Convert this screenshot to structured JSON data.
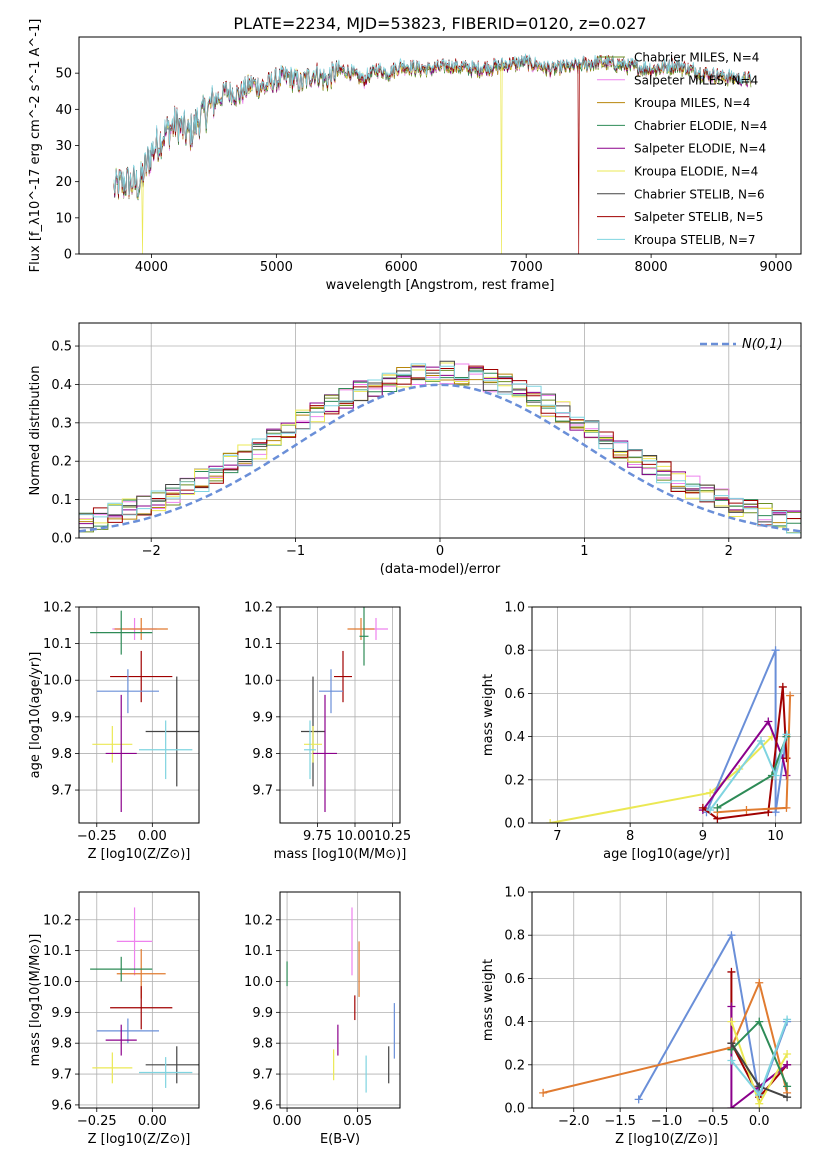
{
  "figure": {
    "title": "PLATE=2234, MJD=53823, FIBERID=0120, z=0.027"
  },
  "chart_data": [
    {
      "id": "spectrum",
      "type": "line",
      "xlabel": "wavelength [Angstrom, rest frame]",
      "ylabel": "Flux [f_λ10^-17 erg cm^-2 s^-1 A^-1]",
      "xlim": [
        3420,
        9200
      ],
      "ylim": [
        0,
        60
      ],
      "xticks": [
        4000,
        5000,
        6000,
        7000,
        8000,
        9000
      ],
      "yticks": [
        0,
        10,
        20,
        30,
        40,
        50
      ],
      "grid": false,
      "legend_position": "right",
      "series": [
        {
          "name": "Chabrier MILES, N_SSP=4",
          "color": "#6b8e23"
        },
        {
          "name": "Salpeter MILES, N_SSP=4",
          "color": "#ee82ee"
        },
        {
          "name": "Kroupa MILES, N_SSP=4",
          "color": "#b8860b"
        },
        {
          "name": "Chabrier ELODIE, N_SSP=4",
          "color": "#2e8b57"
        },
        {
          "name": "Salpeter ELODIE, N_SSP=4",
          "color": "#8b008b"
        },
        {
          "name": "Kroupa ELODIE, N_SSP=4",
          "color": "#ebe854"
        },
        {
          "name": "Chabrier STELIB, N_SSP=6",
          "color": "#444444"
        },
        {
          "name": "Salpeter STELIB, N_SSP=5",
          "color": "#a00000"
        },
        {
          "name": "Kroupa STELIB, N_SSP=7",
          "color": "#7fd4e0"
        }
      ],
      "continuum": {
        "x": [
          3700,
          3800,
          3900,
          4000,
          4100,
          4200,
          4300,
          4400,
          4500,
          4600,
          4700,
          4800,
          4900,
          5000,
          5100,
          5200,
          5300,
          5400,
          5500,
          5600,
          5700,
          5800,
          5900,
          6000,
          6200,
          6400,
          6600,
          6800,
          7000,
          7200,
          7400,
          7600,
          7800,
          8000,
          8200,
          8400,
          8600,
          8800
        ],
        "y": [
          18,
          20,
          19,
          28,
          33,
          36,
          33,
          38,
          42,
          45,
          44,
          47,
          46,
          48,
          49,
          47,
          50,
          48,
          51,
          50,
          48,
          51,
          50,
          52,
          51,
          52,
          51,
          52,
          53,
          51,
          52,
          53,
          52,
          51,
          52,
          50,
          49,
          48
        ]
      },
      "dips": [
        {
          "x": 3930,
          "y": 0,
          "series": "Kroupa ELODIE, N_SSP=4"
        },
        {
          "x": 6800,
          "y": 0,
          "series": "Kroupa ELODIE, N_SSP=4"
        },
        {
          "x": 7420,
          "y": 0,
          "series": "Salpeter STELIB, N_SSP=5"
        }
      ]
    },
    {
      "id": "residual_hist",
      "type": "bar",
      "xlabel": "(data-model)/error",
      "ylabel": "Normed distribution",
      "xlim": [
        -2.5,
        2.5
      ],
      "ylim": [
        0,
        0.56
      ],
      "xticks": [
        -2,
        -1,
        0,
        1,
        2
      ],
      "yticks": [
        0.0,
        0.1,
        0.2,
        0.3,
        0.4,
        0.5
      ],
      "grid": true,
      "legend": [
        {
          "name": "N(0,1)",
          "color": "#6a8fd8",
          "style": "dashed"
        }
      ],
      "legend_position": "top-right",
      "bin_width": 0.1,
      "gaussian": {
        "mean": 0,
        "sigma": 1
      }
    },
    {
      "id": "age_vs_Z",
      "type": "scatter",
      "xlabel": "Z [log10(Z/Z⊙)]",
      "ylabel": "age [log10(age/yr)]",
      "xlim": [
        -0.33,
        0.21
      ],
      "ylim": [
        9.61,
        10.2
      ],
      "xticks": [
        -0.25,
        0.0
      ],
      "yticks": [
        9.7,
        9.8,
        9.9,
        10.0,
        10.1,
        10.2
      ],
      "grid": true,
      "points": [
        {
          "x": -0.08,
          "y": 10.14,
          "xerr": 0.1,
          "yerr": 0.03,
          "color": "#ee82ee"
        },
        {
          "x": -0.05,
          "y": 10.14,
          "xerr": 0.12,
          "yerr": 0.03,
          "color": "#e07b30"
        },
        {
          "x": -0.14,
          "y": 10.13,
          "xerr": 0.14,
          "yerr": 0.06,
          "color": "#2e8b57"
        },
        {
          "x": -0.05,
          "y": 10.01,
          "xerr": 0.14,
          "yerr": 0.07,
          "color": "#a00000"
        },
        {
          "x": -0.11,
          "y": 9.97,
          "xerr": 0.14,
          "yerr": 0.06,
          "color": "#6a8fd8"
        },
        {
          "x": 0.11,
          "y": 9.86,
          "xerr": 0.14,
          "yerr": 0.15,
          "color": "#444444"
        },
        {
          "x": -0.18,
          "y": 9.825,
          "xerr": 0.09,
          "yerr": 0.05,
          "color": "#ebe854"
        },
        {
          "x": -0.14,
          "y": 9.8,
          "xerr": 0.07,
          "yerr": 0.16,
          "color": "#8b008b"
        },
        {
          "x": 0.06,
          "y": 9.81,
          "xerr": 0.12,
          "yerr": 0.08,
          "color": "#7fd4e0"
        }
      ]
    },
    {
      "id": "age_vs_mass",
      "type": "scatter",
      "xlabel": "mass [log10(M/M⊙)]",
      "ylabel": "",
      "xlim": [
        9.5,
        10.3
      ],
      "ylim": [
        9.61,
        10.2
      ],
      "xticks": [
        9.75,
        10.0,
        10.25
      ],
      "yticks": [
        9.7,
        9.8,
        9.9,
        10.0,
        10.1,
        10.2
      ],
      "grid": true,
      "points": [
        {
          "x": 10.14,
          "y": 10.14,
          "xerr": 0.08,
          "yerr": 0.03,
          "color": "#ee82ee"
        },
        {
          "x": 10.04,
          "y": 10.14,
          "xerr": 0.09,
          "yerr": 0.03,
          "color": "#e07b30"
        },
        {
          "x": 10.06,
          "y": 10.12,
          "xerr": 0.03,
          "yerr": 0.08,
          "color": "#2e8b57"
        },
        {
          "x": 9.92,
          "y": 10.01,
          "xerr": 0.06,
          "yerr": 0.07,
          "color": "#a00000"
        },
        {
          "x": 9.84,
          "y": 9.97,
          "xerr": 0.08,
          "yerr": 0.06,
          "color": "#6a8fd8"
        },
        {
          "x": 9.72,
          "y": 9.86,
          "xerr": 0.08,
          "yerr": 0.15,
          "color": "#444444"
        },
        {
          "x": 9.72,
          "y": 9.825,
          "xerr": 0.06,
          "yerr": 0.05,
          "color": "#ebe854"
        },
        {
          "x": 9.8,
          "y": 9.8,
          "xerr": 0.08,
          "yerr": 0.16,
          "color": "#8b008b"
        },
        {
          "x": 9.7,
          "y": 9.81,
          "xerr": 0.04,
          "yerr": 0.08,
          "color": "#7fd4e0"
        }
      ]
    },
    {
      "id": "weight_vs_age",
      "type": "line",
      "xlabel": "age [log10(age/yr)]",
      "ylabel": "mass weight",
      "xlim": [
        6.65,
        10.35
      ],
      "ylim": [
        0,
        1.0
      ],
      "xticks": [
        7,
        8,
        9,
        10
      ],
      "yticks": [
        0.0,
        0.2,
        0.4,
        0.6,
        0.8,
        1.0
      ],
      "grid": true,
      "series": [
        {
          "color": "#ebe854",
          "x": [
            6.9,
            9.1,
            9.5,
            9.95
          ],
          "y": [
            0.0,
            0.14,
            0.25,
            0.4
          ]
        },
        {
          "color": "#6a8fd8",
          "x": [
            9.05,
            10.0,
            10.0,
            10.15
          ],
          "y": [
            0.05,
            0.8,
            0.05,
            0.4
          ]
        },
        {
          "color": "#8b008b",
          "x": [
            9.0,
            9.9,
            10.1,
            10.15
          ],
          "y": [
            0.06,
            0.47,
            0.3,
            0.22
          ]
        },
        {
          "color": "#a00000",
          "x": [
            9.0,
            9.2,
            9.9,
            10.1,
            10.15
          ],
          "y": [
            0.07,
            0.02,
            0.05,
            0.63,
            0.3
          ]
        },
        {
          "color": "#e07b30",
          "x": [
            9.2,
            9.6,
            10.15,
            10.2
          ],
          "y": [
            0.05,
            0.06,
            0.07,
            0.59
          ]
        },
        {
          "color": "#2e8b57",
          "x": [
            9.2,
            9.95,
            10.15
          ],
          "y": [
            0.07,
            0.22,
            0.4
          ]
        },
        {
          "color": "#7fd4e0",
          "x": [
            9.1,
            9.8,
            10.0,
            10.15
          ],
          "y": [
            0.06,
            0.38,
            0.22,
            0.41
          ]
        }
      ]
    },
    {
      "id": "mass_vs_Z",
      "type": "scatter",
      "xlabel": "Z [log10(Z/Z⊙)]",
      "ylabel": "mass [log10(M/M⊙)]",
      "xlim": [
        -0.33,
        0.21
      ],
      "ylim": [
        9.59,
        10.29
      ],
      "xticks": [
        -0.25,
        0.0
      ],
      "yticks": [
        9.6,
        9.7,
        9.8,
        9.9,
        10.0,
        10.1,
        10.2
      ],
      "grid": true,
      "points": [
        {
          "x": -0.08,
          "y": 10.13,
          "xerr": 0.08,
          "yerr": 0.11,
          "color": "#ee82ee"
        },
        {
          "x": -0.05,
          "y": 10.025,
          "xerr": 0.11,
          "yerr": 0.08,
          "color": "#e07b30"
        },
        {
          "x": -0.14,
          "y": 10.04,
          "xerr": 0.14,
          "yerr": 0.04,
          "color": "#2e8b57"
        },
        {
          "x": -0.05,
          "y": 9.915,
          "xerr": 0.14,
          "yerr": 0.07,
          "color": "#a00000"
        },
        {
          "x": -0.11,
          "y": 9.84,
          "xerr": 0.14,
          "yerr": 0.04,
          "color": "#6a8fd8"
        },
        {
          "x": 0.11,
          "y": 9.73,
          "xerr": 0.14,
          "yerr": 0.06,
          "color": "#444444"
        },
        {
          "x": -0.18,
          "y": 9.72,
          "xerr": 0.09,
          "yerr": 0.05,
          "color": "#ebe854"
        },
        {
          "x": -0.14,
          "y": 9.81,
          "xerr": 0.07,
          "yerr": 0.05,
          "color": "#8b008b"
        },
        {
          "x": 0.06,
          "y": 9.705,
          "xerr": 0.12,
          "yerr": 0.05,
          "color": "#7fd4e0"
        }
      ]
    },
    {
      "id": "mass_vs_EBV",
      "type": "scatter",
      "xlabel": "E(B-V)",
      "ylabel": "",
      "xlim": [
        -0.005,
        0.08
      ],
      "ylim": [
        9.59,
        10.29
      ],
      "xticks": [
        0.0,
        0.05
      ],
      "yticks": [
        9.6,
        9.7,
        9.8,
        9.9,
        10.0,
        10.1,
        10.2
      ],
      "grid": true,
      "points": [
        {
          "x": 0.046,
          "y": 10.13,
          "xerr": 0,
          "yerr": 0.11,
          "color": "#ee82ee"
        },
        {
          "x": 0.051,
          "y": 10.04,
          "xerr": 0,
          "yerr": 0.09,
          "color": "#e07b30"
        },
        {
          "x": 0.0,
          "y": 10.025,
          "xerr": 0,
          "yerr": 0.04,
          "color": "#2e8b57"
        },
        {
          "x": 0.048,
          "y": 9.915,
          "xerr": 0,
          "yerr": 0.04,
          "color": "#a00000"
        },
        {
          "x": 0.076,
          "y": 9.84,
          "xerr": 0,
          "yerr": 0.09,
          "color": "#6a8fd8"
        },
        {
          "x": 0.072,
          "y": 9.73,
          "xerr": 0,
          "yerr": 0.06,
          "color": "#444444"
        },
        {
          "x": 0.033,
          "y": 9.73,
          "xerr": 0,
          "yerr": 0.05,
          "color": "#ebe854"
        },
        {
          "x": 0.036,
          "y": 9.81,
          "xerr": 0,
          "yerr": 0.05,
          "color": "#8b008b"
        },
        {
          "x": 0.056,
          "y": 9.7,
          "xerr": 0,
          "yerr": 0.06,
          "color": "#7fd4e0"
        }
      ]
    },
    {
      "id": "weight_vs_Z",
      "type": "line",
      "xlabel": "Z [log10(Z/Z⊙)]",
      "ylabel": "mass weight",
      "xlim": [
        -2.45,
        0.45
      ],
      "ylim": [
        0,
        1.0
      ],
      "xticks": [
        -2.0,
        -1.5,
        -1.0,
        -0.5,
        0.0
      ],
      "yticks": [
        0.0,
        0.2,
        0.4,
        0.6,
        0.8,
        1.0
      ],
      "grid": true,
      "series": [
        {
          "color": "#6a8fd8",
          "x": [
            -1.3,
            -0.3,
            0.0,
            0.3
          ],
          "y": [
            0.04,
            0.8,
            0.05,
            0.4
          ]
        },
        {
          "color": "#e07b30",
          "x": [
            -2.33,
            -0.3,
            0.0,
            0.3
          ],
          "y": [
            0.07,
            0.28,
            0.58,
            0.07
          ]
        },
        {
          "color": "#a00000",
          "x": [
            -0.3,
            -0.3,
            0.0,
            0.3
          ],
          "y": [
            0.63,
            0.3,
            0.05,
            0.2
          ]
        },
        {
          "color": "#8b008b",
          "x": [
            -0.3,
            -0.3,
            0.0,
            0.3
          ],
          "y": [
            0.47,
            0.0,
            0.1,
            0.2
          ]
        },
        {
          "color": "#ebe854",
          "x": [
            -0.3,
            0.0,
            0.3
          ],
          "y": [
            0.4,
            0.02,
            0.25
          ]
        },
        {
          "color": "#2e8b57",
          "x": [
            -0.3,
            0.0,
            0.3
          ],
          "y": [
            0.27,
            0.4,
            0.1
          ]
        },
        {
          "color": "#444444",
          "x": [
            -0.3,
            0.0,
            0.3
          ],
          "y": [
            0.3,
            0.1,
            0.05
          ]
        },
        {
          "color": "#7fd4e0",
          "x": [
            -0.3,
            0.0,
            0.3
          ],
          "y": [
            0.22,
            0.06,
            0.41
          ]
        }
      ]
    }
  ]
}
